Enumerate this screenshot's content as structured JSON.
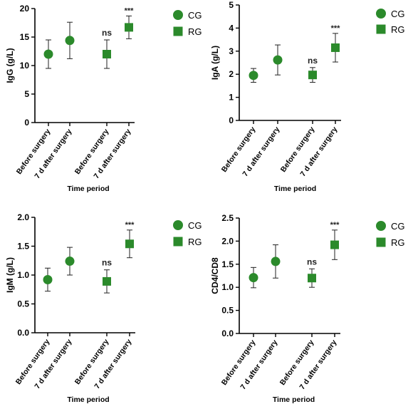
{
  "figure": {
    "type": "multi-panel dot plot with error bars"
  },
  "colors": {
    "green": "#2b8a2b",
    "axis": "#000000"
  },
  "chart_data": [
    {
      "type": "scatter",
      "panel": "IgG",
      "ylabel": "IgG (g/L)",
      "xlabel": "Time period",
      "categories": [
        "Before surgery",
        "7 d after surgery",
        "Before surgery",
        "7 d after surgery"
      ],
      "ylim": [
        0,
        20
      ],
      "yticks": [
        0,
        5,
        10,
        15,
        20
      ],
      "ytick_labels": [
        "0",
        "5",
        "10",
        "15",
        "20"
      ],
      "points": [
        {
          "group": "CG",
          "category_index": 0,
          "mean": 12.0,
          "err": 2.5
        },
        {
          "group": "CG",
          "category_index": 1,
          "mean": 14.4,
          "err": 3.2
        },
        {
          "group": "RG",
          "category_index": 2,
          "mean": 12.0,
          "err": 2.5,
          "annotation": "ns"
        },
        {
          "group": "RG",
          "category_index": 3,
          "mean": 16.7,
          "err": 2.0,
          "annotation": "***"
        }
      ],
      "legend": [
        {
          "label": "CG",
          "marker": "circle"
        },
        {
          "label": "RG",
          "marker": "square"
        }
      ],
      "legend_position": "top-right",
      "grid": false
    },
    {
      "type": "scatter",
      "panel": "IgA",
      "ylabel": "IgA (g/L)",
      "xlabel": "Time period",
      "categories": [
        "Before surgery",
        "7 d after surgery",
        "Before surgery",
        "7 d after surgery"
      ],
      "ylim": [
        0,
        5
      ],
      "yticks": [
        0,
        1,
        2,
        3,
        4,
        5
      ],
      "ytick_labels": [
        "0",
        "1",
        "2",
        "3",
        "4",
        "5"
      ],
      "points": [
        {
          "group": "CG",
          "category_index": 0,
          "mean": 1.95,
          "err": 0.3
        },
        {
          "group": "CG",
          "category_index": 1,
          "mean": 2.62,
          "err": 0.65
        },
        {
          "group": "RG",
          "category_index": 2,
          "mean": 1.97,
          "err": 0.32,
          "annotation": "ns"
        },
        {
          "group": "RG",
          "category_index": 3,
          "mean": 3.15,
          "err": 0.62,
          "annotation": "***"
        }
      ],
      "legend": [
        {
          "label": "CG",
          "marker": "circle"
        },
        {
          "label": "RG",
          "marker": "square"
        }
      ],
      "legend_position": "top-right",
      "grid": false
    },
    {
      "type": "scatter",
      "panel": "IgM",
      "ylabel": "IgM (g/L)",
      "xlabel": "Time period",
      "categories": [
        "Before surgery",
        "7 d after surgery",
        "Before surgery",
        "7 d after surgery"
      ],
      "ylim": [
        0,
        2.0
      ],
      "yticks": [
        0,
        0.5,
        1.0,
        1.5,
        2.0
      ],
      "ytick_labels": [
        "0.0",
        "0.5",
        "1.0",
        "1.5",
        "2.0"
      ],
      "points": [
        {
          "group": "CG",
          "category_index": 0,
          "mean": 0.92,
          "err": 0.2
        },
        {
          "group": "CG",
          "category_index": 1,
          "mean": 1.24,
          "err": 0.24
        },
        {
          "group": "RG",
          "category_index": 2,
          "mean": 0.89,
          "err": 0.2,
          "annotation": "ns"
        },
        {
          "group": "RG",
          "category_index": 3,
          "mean": 1.54,
          "err": 0.24,
          "annotation": "***"
        }
      ],
      "legend": [
        {
          "label": "CG",
          "marker": "circle"
        },
        {
          "label": "RG",
          "marker": "square"
        }
      ],
      "legend_position": "top-right",
      "grid": false
    },
    {
      "type": "scatter",
      "panel": "CD4/CD8",
      "ylabel": "CD4/CD8",
      "xlabel": "Time period",
      "categories": [
        "Before surgery",
        "7 d after surgery",
        "Before surgery",
        "7 d after surgery"
      ],
      "ylim": [
        0,
        2.5
      ],
      "yticks": [
        0,
        0.5,
        1.0,
        1.5,
        2.0,
        2.5
      ],
      "ytick_labels": [
        "0.0",
        "0.5",
        "1.0",
        "1.5",
        "2.0",
        "2.5"
      ],
      "points": [
        {
          "group": "CG",
          "category_index": 0,
          "mean": 1.21,
          "err": 0.22
        },
        {
          "group": "CG",
          "category_index": 1,
          "mean": 1.56,
          "err": 0.36
        },
        {
          "group": "RG",
          "category_index": 2,
          "mean": 1.2,
          "err": 0.2,
          "annotation": "ns"
        },
        {
          "group": "RG",
          "category_index": 3,
          "mean": 1.92,
          "err": 0.32,
          "annotation": "***"
        }
      ],
      "legend": [
        {
          "label": "CG",
          "marker": "circle"
        },
        {
          "label": "RG",
          "marker": "square"
        }
      ],
      "legend_position": "top-right",
      "grid": false
    }
  ]
}
